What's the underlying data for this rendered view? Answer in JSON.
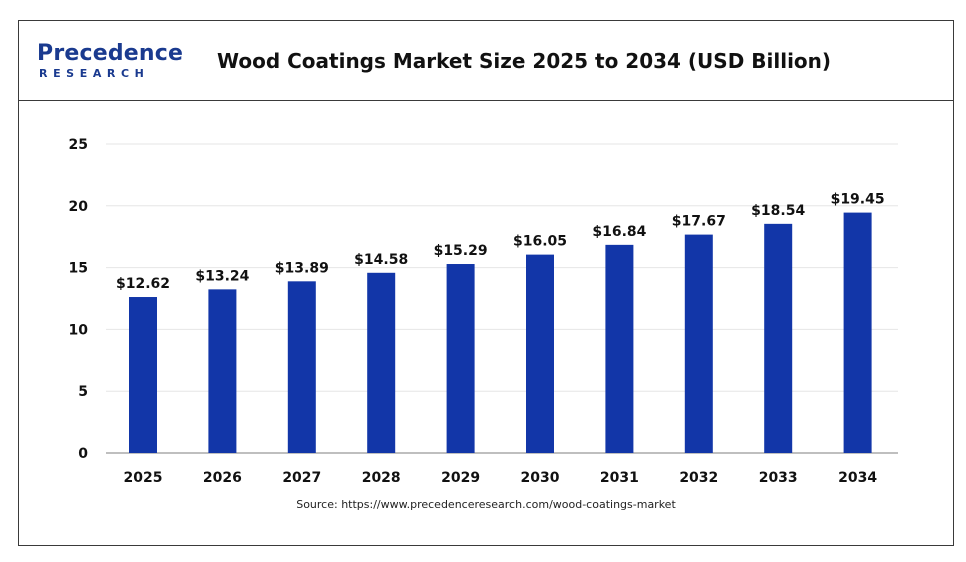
{
  "header": {
    "logo_main": "Precedence",
    "logo_sub": "RESEARCH",
    "title": "Wood Coatings Market Size 2025 to 2034 (USD Billion)"
  },
  "source": "Source: https://www.precedenceresearch.com/wood-coatings-market",
  "colors": {
    "bar": "#1236a8",
    "logo": "#1a3a8f",
    "grid": "#e6e6e6",
    "axis": "#999999"
  },
  "chart_data": {
    "type": "bar",
    "title": "Wood Coatings Market Size 2025 to 2034 (USD Billion)",
    "categories": [
      "2025",
      "2026",
      "2027",
      "2028",
      "2029",
      "2030",
      "2031",
      "2032",
      "2033",
      "2034"
    ],
    "values": [
      12.62,
      13.24,
      13.89,
      14.58,
      15.29,
      16.05,
      16.84,
      17.67,
      18.54,
      19.45
    ],
    "data_labels": [
      "$12.62",
      "$13.24",
      "$13.89",
      "$14.58",
      "$15.29",
      "$16.05",
      "$16.84",
      "$17.67",
      "$18.54",
      "$19.45"
    ],
    "yticks": [
      "0",
      "5",
      "10",
      "15",
      "20",
      "25"
    ],
    "ylim": [
      0,
      25
    ],
    "grid": true,
    "legend": "none"
  }
}
